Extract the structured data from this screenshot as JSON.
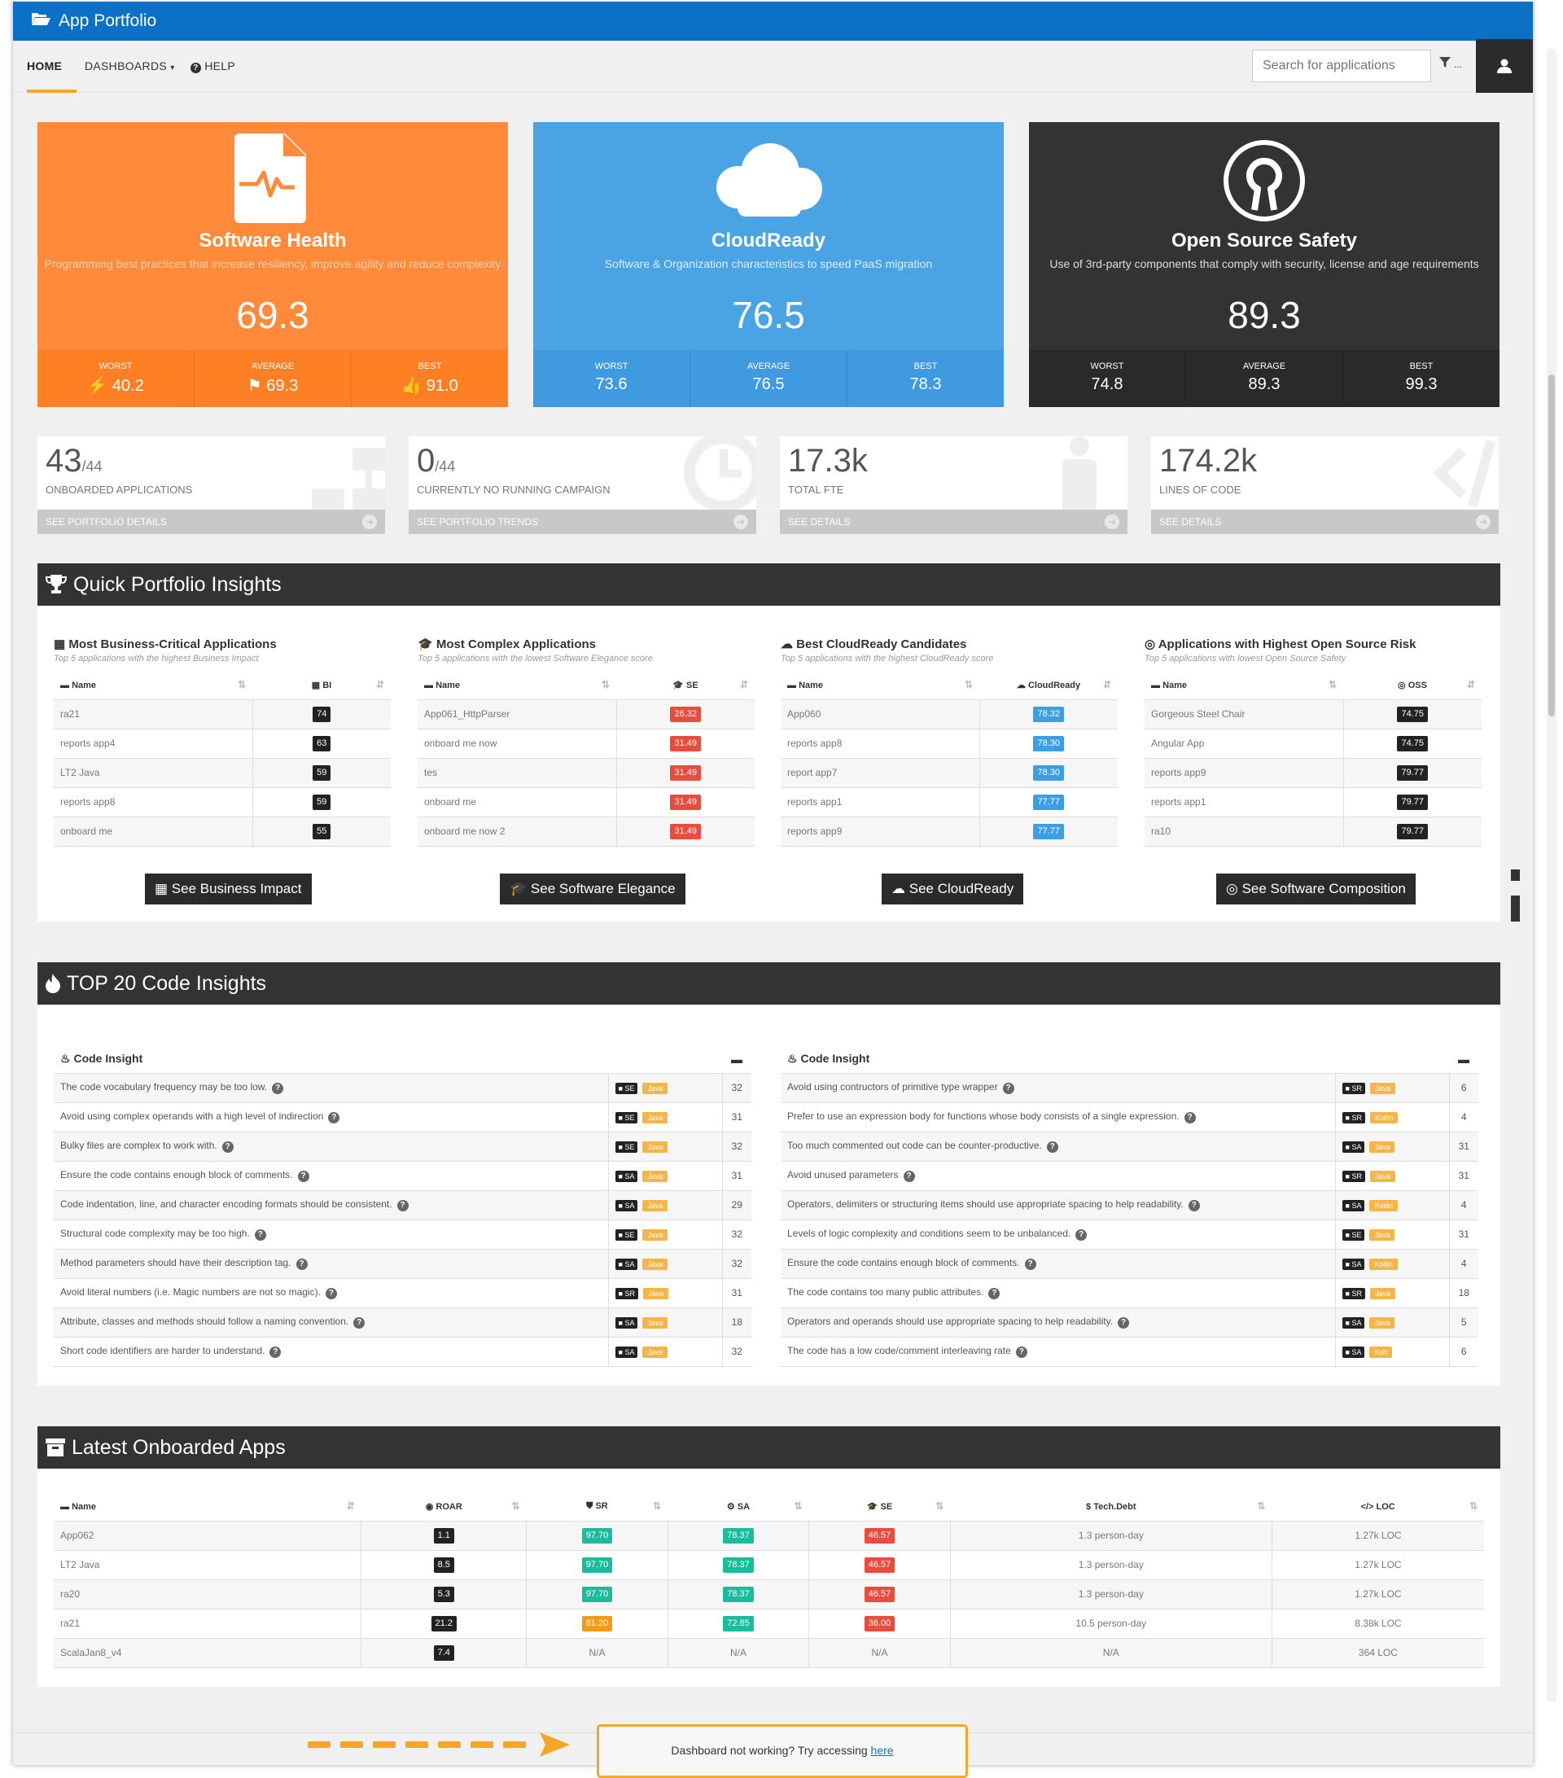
{
  "app": {
    "title": "App Portfolio"
  },
  "nav": {
    "home": "HOME",
    "dashboards": "DASHBOARDS",
    "help": "HELP",
    "search_placeholder": "Search for applications",
    "filter_label": "..."
  },
  "health_cards": [
    {
      "title": "Software Health",
      "subtitle": "Programming best practices that increase resiliency, improve agility and reduce complexity",
      "score": "69.3",
      "worst_label": "WORST",
      "worst": "40.2",
      "average_label": "AVERAGE",
      "average": "69.3",
      "best_label": "BEST",
      "best": "91.0",
      "color": "#ff8a3a"
    },
    {
      "title": "CloudReady",
      "subtitle": "Software & Organization characteristics to speed PaaS migration",
      "score": "76.5",
      "worst_label": "WORST",
      "worst": "73.6",
      "average_label": "AVERAGE",
      "average": "76.5",
      "best_label": "BEST",
      "best": "78.3",
      "color": "#4aa3e2"
    },
    {
      "title": "Open Source Safety",
      "subtitle": "Use of 3rd-party components that comply with security, license and age requirements",
      "score": "89.3",
      "worst_label": "WORST",
      "worst": "74.8",
      "average_label": "AVERAGE",
      "average": "89.3",
      "best_label": "BEST",
      "best": "99.3",
      "color": "#333333"
    }
  ],
  "kpis": [
    {
      "value": "43",
      "suffix": "/44",
      "label": "ONBOARDED APPLICATIONS",
      "link": "SEE PORTFOLIO DETAILS"
    },
    {
      "value": "0",
      "suffix": "/44",
      "label": "CURRENTLY NO RUNNING CAMPAIGN",
      "link": "SEE PORTFOLIO TRENDS"
    },
    {
      "value": "17.3k",
      "suffix": "",
      "label": "TOTAL FTE",
      "link": "SEE DETAILS"
    },
    {
      "value": "174.2k",
      "suffix": "",
      "label": "LINES OF CODE",
      "link": "SEE DETAILS"
    }
  ],
  "quick": {
    "title": "Quick Portfolio Insights",
    "lists": [
      {
        "title": "Most Business-Critical Applications",
        "subtitle": "Top 5 applications with the highest Business Impact",
        "name_col": "Name",
        "value_col": "BI",
        "button": "See Business Impact",
        "rows": [
          {
            "name": "ra21",
            "value": "74"
          },
          {
            "name": "reports app4",
            "value": "63"
          },
          {
            "name": "LT2 Java",
            "value": "59"
          },
          {
            "name": "reports app8",
            "value": "59"
          },
          {
            "name": "onboard me",
            "value": "55"
          }
        ]
      },
      {
        "title": "Most Complex Applications",
        "subtitle": "Top 5 applications with the lowest Software Elegance score",
        "name_col": "Name",
        "value_col": "SE",
        "button": "See Software Elegance",
        "rows": [
          {
            "name": "App061_HttpParser",
            "value": "26.32"
          },
          {
            "name": "onboard me now",
            "value": "31.49"
          },
          {
            "name": "tes",
            "value": "31.49"
          },
          {
            "name": "onboard me",
            "value": "31.49"
          },
          {
            "name": "onboard me now 2",
            "value": "31.49"
          }
        ]
      },
      {
        "title": "Best CloudReady Candidates",
        "subtitle": "Top 5 applications with the highest CloudReady score",
        "name_col": "Name",
        "value_col": "CloudReady",
        "button": "See CloudReady",
        "rows": [
          {
            "name": "App060",
            "value": "78.32"
          },
          {
            "name": "reports app8",
            "value": "78.30"
          },
          {
            "name": "report app7",
            "value": "78.30"
          },
          {
            "name": "reports app1",
            "value": "77.77"
          },
          {
            "name": "reports app9",
            "value": "77.77"
          }
        ]
      },
      {
        "title": "Applications with Highest Open Source Risk",
        "subtitle": "Top 5 applications with lowest Open Source Safety",
        "name_col": "Name",
        "value_col": "OSS",
        "button": "See Software Composition",
        "rows": [
          {
            "name": "Gorgeous Steel Chair",
            "value": "74.75"
          },
          {
            "name": "Angular App",
            "value": "74.75"
          },
          {
            "name": "reports app9",
            "value": "79.77"
          },
          {
            "name": "reports app1",
            "value": "79.77"
          },
          {
            "name": "ra10",
            "value": "79.77"
          }
        ]
      }
    ]
  },
  "code": {
    "title": "TOP 20 Code Insights",
    "col_title": "Code Insight",
    "left": [
      {
        "text": "The code vocabulary frequency may be too low.",
        "tag": "SE",
        "lang": "Java",
        "count": "32"
      },
      {
        "text": "Avoid using complex operands with a high level of indirection",
        "tag": "SE",
        "lang": "Java",
        "count": "31"
      },
      {
        "text": "Bulky files are complex to work with.",
        "tag": "SE",
        "lang": "Java",
        "count": "32"
      },
      {
        "text": "Ensure the code contains enough block of comments.",
        "tag": "SA",
        "lang": "Java",
        "count": "31"
      },
      {
        "text": "Code indentation, line, and character encoding formats should be consistent.",
        "tag": "SA",
        "lang": "Java",
        "count": "29"
      },
      {
        "text": "Structural code complexity may be too high.",
        "tag": "SE",
        "lang": "Java",
        "count": "32"
      },
      {
        "text": "Method parameters should have their description tag.",
        "tag": "SA",
        "lang": "Java",
        "count": "32"
      },
      {
        "text": "Avoid literal numbers (i.e. Magic numbers are not so magic).",
        "tag": "SR",
        "lang": "Java",
        "count": "31"
      },
      {
        "text": "Attribute, classes and methods should follow a naming convention.",
        "tag": "SA",
        "lang": "Java",
        "count": "18"
      },
      {
        "text": "Short code identifiers are harder to understand.",
        "tag": "SA",
        "lang": "Java",
        "count": "32"
      }
    ],
    "right": [
      {
        "text": "Avoid using contructors of primitive type wrapper",
        "tag": "SR",
        "lang": "Java",
        "count": "6"
      },
      {
        "text": "Prefer to use an expression body for functions whose body consists of a single expression.",
        "tag": "SR",
        "lang": "Kotlin",
        "count": "4"
      },
      {
        "text": "Too much commented out code can be counter-productive.",
        "tag": "SA",
        "lang": "Java",
        "count": "31"
      },
      {
        "text": "Avoid unused parameters",
        "tag": "SR",
        "lang": "Java",
        "count": "31"
      },
      {
        "text": "Operators, delimiters or structuring items should use appropriate spacing to help readability.",
        "tag": "SA",
        "lang": "Kotlin",
        "count": "4"
      },
      {
        "text": "Levels of logic complexity and conditions seem to be unbalanced.",
        "tag": "SE",
        "lang": "Java",
        "count": "31"
      },
      {
        "text": "Ensure the code contains enough block of comments.",
        "tag": "SA",
        "lang": "Kotlin",
        "count": "4"
      },
      {
        "text": "The code contains too many public attributes.",
        "tag": "SR",
        "lang": "Java",
        "count": "18"
      },
      {
        "text": "Operators and operands should use appropriate spacing to help readability.",
        "tag": "SA",
        "lang": "Java",
        "count": "5"
      },
      {
        "text": "The code has a low code/comment interleaving rate",
        "tag": "SA",
        "lang": "Ksh",
        "count": "6"
      }
    ]
  },
  "latest": {
    "title": "Latest Onboarded Apps",
    "cols": [
      "Name",
      "ROAR",
      "SR",
      "SA",
      "SE",
      "Tech.Debt",
      "LOC"
    ],
    "rows": [
      {
        "name": "App062",
        "roar": "1.1",
        "sr": "97.70",
        "sa": "78.37",
        "se": "46.57",
        "debt": "1.3 person-day",
        "loc": "1.27k LOC"
      },
      {
        "name": "LT2 Java",
        "roar": "8.5",
        "sr": "97.70",
        "sa": "78.37",
        "se": "46.57",
        "debt": "1.3 person-day",
        "loc": "1.27k LOC"
      },
      {
        "name": "ra20",
        "roar": "5.3",
        "sr": "97.70",
        "sa": "78.37",
        "se": "46.57",
        "debt": "1.3 person-day",
        "loc": "1.27k LOC"
      },
      {
        "name": "ra21",
        "roar": "21.2",
        "sr": "81.20",
        "sa": "72.85",
        "se": "36.00",
        "debt": "10.5 person-day",
        "loc": "8.38k LOC"
      },
      {
        "name": "ScalaJan8_v4",
        "roar": "7.4",
        "sr": "N/A",
        "sa": "N/A",
        "se": "N/A",
        "debt": "N/A",
        "loc": "364 LOC"
      }
    ]
  },
  "footer": {
    "notice": "Dashboard not working? Try accessing",
    "link": "here"
  },
  "colors": {
    "accent": "#f5a623",
    "titlebar": "#0a71c7",
    "dark": "#333333"
  }
}
